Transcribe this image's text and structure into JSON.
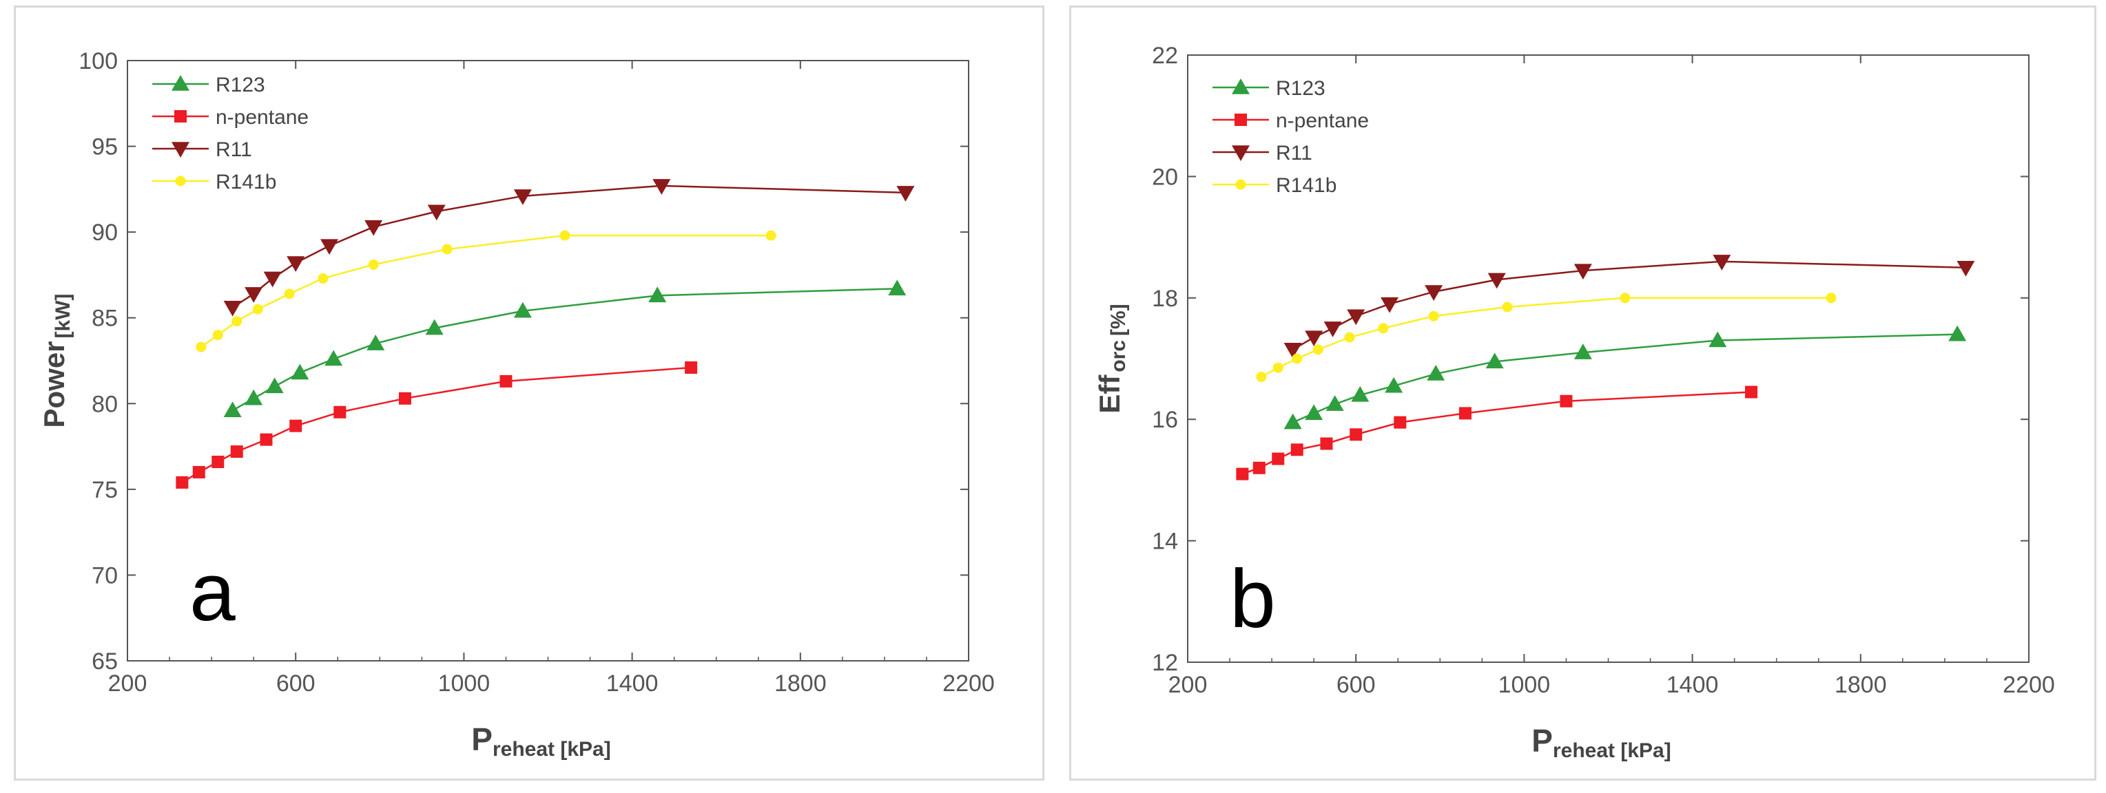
{
  "chart_data": [
    {
      "type": "line",
      "panel_label": "a",
      "xlabel_main": "P",
      "xlabel_sub": "reheat [kPa]",
      "ylabel_main": "Power",
      "ylabel_sub": "[kW]",
      "xlim": [
        200,
        2200
      ],
      "ylim": [
        65,
        100
      ],
      "xticks": [
        200,
        600,
        1000,
        1400,
        1800,
        2200
      ],
      "yticks": [
        65,
        70,
        75,
        80,
        85,
        90,
        95,
        100
      ],
      "legend_position": "top-left",
      "series": [
        {
          "name": "R123",
          "color": "#2e9e3e",
          "marker": "triangle-up",
          "x": [
            450,
            500,
            550,
            610,
            690,
            790,
            930,
            1140,
            1460,
            2030
          ],
          "y": [
            79.6,
            80.3,
            81.0,
            81.8,
            82.6,
            83.5,
            84.4,
            85.4,
            86.3,
            86.7
          ]
        },
        {
          "name": "n-pentane",
          "color": "#ee1c24",
          "marker": "square",
          "x": [
            330,
            370,
            415,
            460,
            530,
            600,
            705,
            860,
            1100,
            1540
          ],
          "y": [
            75.4,
            76.0,
            76.6,
            77.2,
            77.9,
            78.7,
            79.5,
            80.3,
            81.3,
            82.1
          ]
        },
        {
          "name": "R11",
          "color": "#8b1a1a",
          "marker": "triangle-down",
          "x": [
            450,
            500,
            545,
            600,
            680,
            785,
            935,
            1140,
            1470,
            2050
          ],
          "y": [
            85.6,
            86.4,
            87.3,
            88.2,
            89.2,
            90.3,
            91.2,
            92.1,
            92.7,
            92.3
          ]
        },
        {
          "name": "R141b",
          "color": "#ffee22",
          "marker": "circle",
          "x": [
            375,
            415,
            460,
            510,
            585,
            665,
            785,
            960,
            1240,
            1730
          ],
          "y": [
            83.3,
            84.0,
            84.8,
            85.5,
            86.4,
            87.3,
            88.1,
            89.0,
            89.8,
            89.8
          ]
        }
      ]
    },
    {
      "type": "line",
      "panel_label": "b",
      "xlabel_main": "P",
      "xlabel_sub": "reheat [kPa]",
      "ylabel_main": "Eff",
      "ylabel_sub": "orc",
      "ylabel_unit": "[%]",
      "xlim": [
        200,
        2200
      ],
      "ylim": [
        12,
        22
      ],
      "xticks": [
        200,
        600,
        1000,
        1400,
        1800,
        2200
      ],
      "yticks": [
        12,
        14,
        16,
        18,
        20,
        22
      ],
      "legend_position": "top-left",
      "series": [
        {
          "name": "R123",
          "color": "#2e9e3e",
          "marker": "triangle-up",
          "x": [
            450,
            500,
            550,
            610,
            690,
            790,
            930,
            1140,
            1460,
            2030
          ],
          "y": [
            15.95,
            16.1,
            16.25,
            16.4,
            16.55,
            16.75,
            16.95,
            17.1,
            17.3,
            17.4
          ]
        },
        {
          "name": "n-pentane",
          "color": "#ee1c24",
          "marker": "square",
          "x": [
            330,
            370,
            415,
            460,
            530,
            600,
            705,
            860,
            1100,
            1540
          ],
          "y": [
            15.1,
            15.2,
            15.35,
            15.5,
            15.6,
            15.75,
            15.95,
            16.1,
            16.3,
            16.45
          ]
        },
        {
          "name": "R11",
          "color": "#8b1a1a",
          "marker": "triangle-down",
          "x": [
            450,
            500,
            545,
            600,
            680,
            785,
            935,
            1140,
            1470,
            2050
          ],
          "y": [
            17.15,
            17.35,
            17.5,
            17.7,
            17.9,
            18.1,
            18.3,
            18.45,
            18.6,
            18.5
          ]
        },
        {
          "name": "R141b",
          "color": "#ffee22",
          "marker": "circle",
          "x": [
            375,
            415,
            460,
            510,
            585,
            665,
            785,
            960,
            1240,
            1730
          ],
          "y": [
            16.7,
            16.85,
            17.0,
            17.15,
            17.35,
            17.5,
            17.7,
            17.85,
            18.0,
            18.0
          ]
        }
      ]
    }
  ]
}
